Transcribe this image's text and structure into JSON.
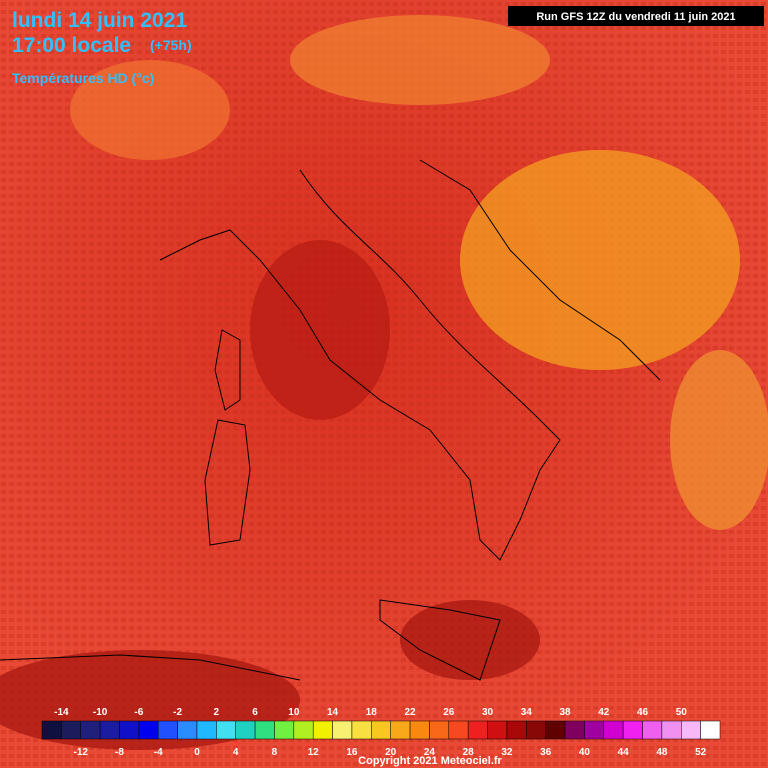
{
  "header": {
    "date": "lundi 14 juin 2021",
    "time": "17:00 locale",
    "lead": "(+75h)",
    "parameter": "Températures HD (°c)",
    "run": "Run GFS 12Z du vendredi 11 juin 2021"
  },
  "legend": {
    "top_labels": [
      -14,
      -10,
      -6,
      -2,
      2,
      6,
      10,
      14,
      18,
      22,
      26,
      30,
      34,
      38,
      42,
      46,
      50
    ],
    "bottom_labels": [
      -12,
      -8,
      -4,
      0,
      4,
      8,
      12,
      16,
      20,
      24,
      28,
      32,
      36,
      40,
      44,
      48,
      52
    ],
    "colors": [
      "#101040",
      "#1c1c5c",
      "#20207c",
      "#1c1ca0",
      "#1010c8",
      "#0000f0",
      "#2050ff",
      "#2a8cff",
      "#20b8ff",
      "#40e0f0",
      "#20d0c0",
      "#30e080",
      "#70f040",
      "#b0f020",
      "#f0f000",
      "#f8f070",
      "#f8e040",
      "#f8c820",
      "#f8a818",
      "#f88810",
      "#f86818",
      "#f84820",
      "#f02020",
      "#d01010",
      "#a80808",
      "#880808",
      "#600000",
      "#800060",
      "#a000a0",
      "#d000d0",
      "#f020f0",
      "#f060f0",
      "#f090f0",
      "#f8b8f8",
      "#ffffff"
    ]
  },
  "footer": {
    "copyright": "Copyright 2021 Meteociel.fr"
  }
}
